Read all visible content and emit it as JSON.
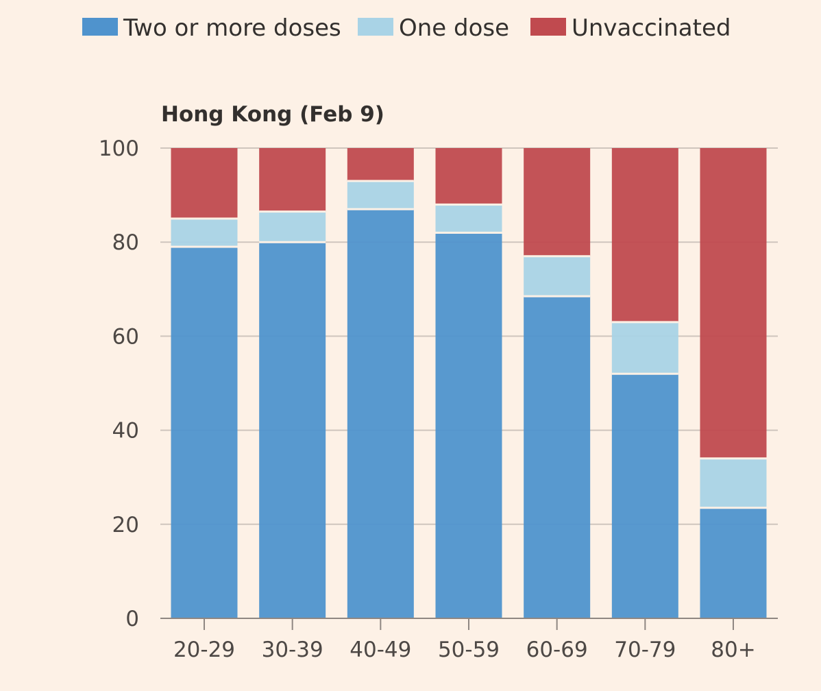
{
  "chart_data": {
    "type": "bar",
    "stacked": true,
    "subtitle": "Hong Kong (Feb 9)",
    "categories": [
      "20-29",
      "30-39",
      "40-49",
      "50-59",
      "60-69",
      "70-79",
      "80+"
    ],
    "series": [
      {
        "name": "Two or more doses",
        "color": "#4f93cd",
        "values": [
          79,
          80,
          87,
          82,
          68.5,
          52,
          23.5
        ]
      },
      {
        "name": "One dose",
        "color": "#a9d3e6",
        "values": [
          6,
          6.5,
          6,
          6,
          8.5,
          11,
          10.5
        ]
      },
      {
        "name": "Unvaccinated",
        "color": "#c04a4f",
        "values": [
          15,
          13.5,
          7,
          12,
          23,
          37,
          66
        ]
      }
    ],
    "ylim": [
      0,
      100
    ],
    "yticks": [
      0,
      20,
      40,
      60,
      80,
      100
    ],
    "grid": true,
    "legend_position": "top-left"
  }
}
